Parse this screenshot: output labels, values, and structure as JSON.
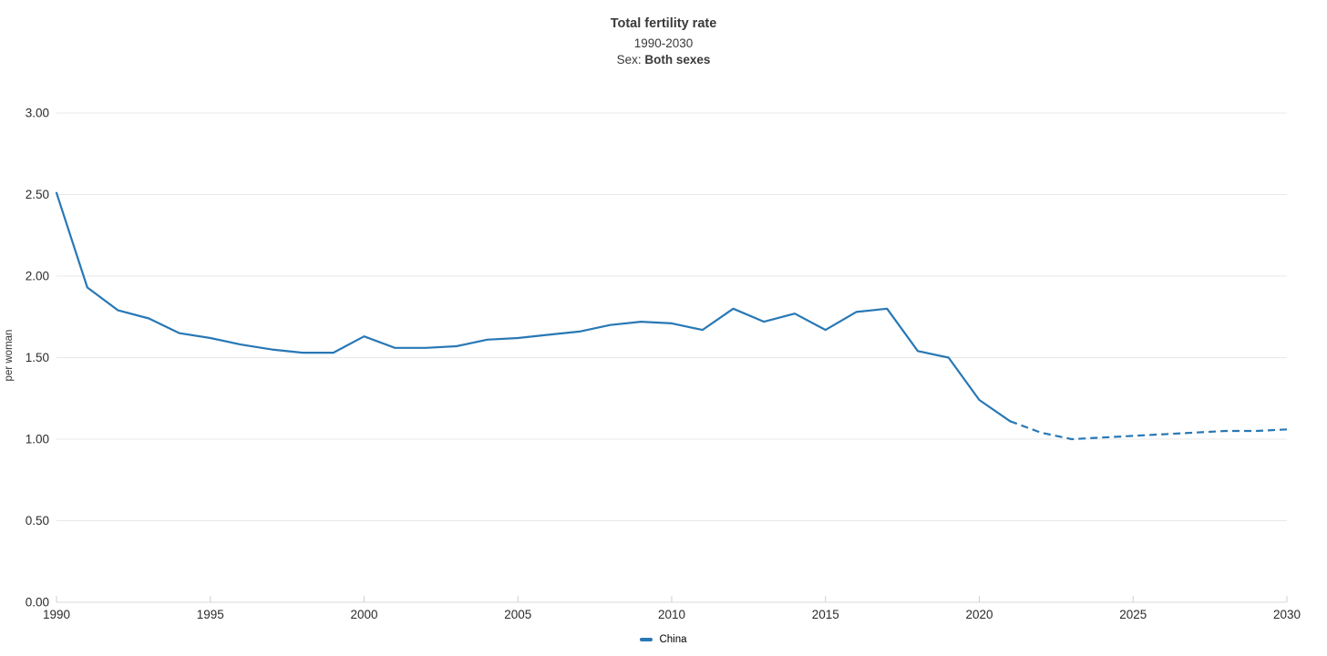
{
  "header": {
    "title": "Total fertility rate",
    "period": "1990-2030",
    "sex_label": "Sex: ",
    "sex_value": "Both sexes"
  },
  "chart_data": {
    "type": "line",
    "title": "Total fertility rate",
    "subtitle": "1990-2030",
    "sex": "Both sexes",
    "ylabel": "per woman",
    "xlim": [
      1990,
      2030
    ],
    "ylim": [
      0,
      3
    ],
    "grid": true,
    "legend_position": "bottom",
    "y_ticks": [
      {
        "value": 0.0,
        "label": "0.00"
      },
      {
        "value": 0.5,
        "label": "0.50"
      },
      {
        "value": 1.0,
        "label": "1.00"
      },
      {
        "value": 1.5,
        "label": "1.50"
      },
      {
        "value": 2.0,
        "label": "2.00"
      },
      {
        "value": 2.5,
        "label": "2.50"
      },
      {
        "value": 3.0,
        "label": "3.00"
      }
    ],
    "x_ticks": [
      {
        "value": 1990,
        "label": "1990"
      },
      {
        "value": 1995,
        "label": "1995"
      },
      {
        "value": 2000,
        "label": "2000"
      },
      {
        "value": 2005,
        "label": "2005"
      },
      {
        "value": 2010,
        "label": "2010"
      },
      {
        "value": 2015,
        "label": "2015"
      },
      {
        "value": 2020,
        "label": "2020"
      },
      {
        "value": 2025,
        "label": "2025"
      },
      {
        "value": 2030,
        "label": "2030"
      }
    ],
    "series": [
      {
        "name": "China",
        "color": "#2878b5",
        "solid_until_x": 2021,
        "projection_style": "dashed",
        "x": [
          1990,
          1991,
          1992,
          1993,
          1994,
          1995,
          1996,
          1997,
          1998,
          1999,
          2000,
          2001,
          2002,
          2003,
          2004,
          2005,
          2006,
          2007,
          2008,
          2009,
          2010,
          2011,
          2012,
          2013,
          2014,
          2015,
          2016,
          2017,
          2018,
          2019,
          2020,
          2021,
          2022,
          2023,
          2024,
          2025,
          2026,
          2027,
          2028,
          2029,
          2030
        ],
        "values": [
          2.51,
          1.93,
          1.79,
          1.74,
          1.65,
          1.62,
          1.58,
          1.55,
          1.53,
          1.53,
          1.63,
          1.56,
          1.56,
          1.57,
          1.61,
          1.62,
          1.64,
          1.66,
          1.7,
          1.72,
          1.71,
          1.67,
          1.8,
          1.72,
          1.77,
          1.67,
          1.78,
          1.8,
          1.54,
          1.5,
          1.24,
          1.11,
          1.04,
          1.0,
          1.01,
          1.02,
          1.03,
          1.04,
          1.05,
          1.05,
          1.06
        ]
      }
    ],
    "colors": {
      "gridline": "#e8e8e8",
      "axis_line": "#dadada",
      "tick_mark": "#cfcfcf"
    }
  }
}
